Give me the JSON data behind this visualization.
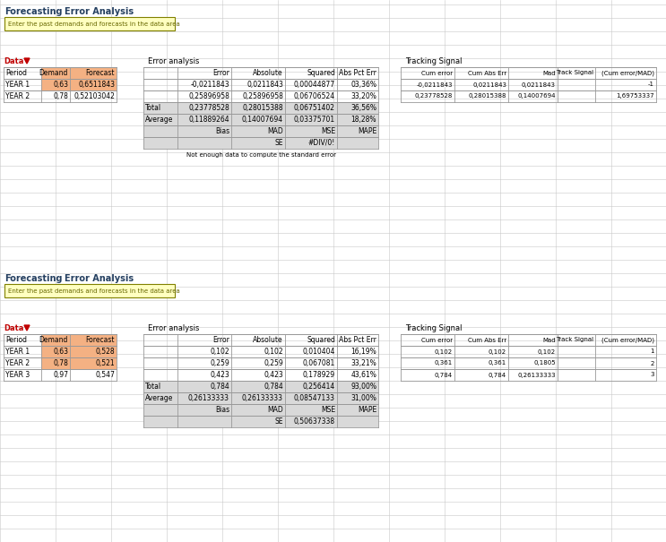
{
  "title_fore": "Forecasting",
  "title_err": "Error Analysis",
  "subtitle": "Enter the past demands and forecasts in the data area",
  "data_header": [
    "Period",
    "Demand",
    "Forecast"
  ],
  "err_header": [
    "",
    "Error",
    "Absolute",
    "Squared",
    "Abs Pct Err"
  ],
  "ts_header": [
    "Cum error",
    "Cum Abs Err",
    "Mad",
    "Track Signal",
    "(Cum error/MAD)"
  ],
  "t1_data_rows": [
    [
      "YEAR 1",
      "0,63",
      "0,6511843"
    ],
    [
      "YEAR 2",
      "0,78",
      "0,52103042"
    ]
  ],
  "t1_err_rows": [
    [
      "",
      "-0,0211843",
      "0,0211843",
      "0,00044877",
      "03,36%"
    ],
    [
      "",
      "0,25896958",
      "0,25896958",
      "0,06706524",
      "33,20%"
    ],
    [
      "Total",
      "0,23778528",
      "0,28015388",
      "0,06751402",
      "36,56%"
    ],
    [
      "Average",
      "0,11889264",
      "0,14007694",
      "0,03375701",
      "18,28%"
    ],
    [
      "",
      "Bias",
      "MAD",
      "MSE",
      "MAPE"
    ],
    [
      "",
      "",
      "SE",
      "#DIV/0!",
      ""
    ]
  ],
  "t1_ts_rows": [
    [
      "-0,0211843",
      "0,0211843",
      "0,0211843",
      "",
      "-1"
    ],
    [
      "0,23778528",
      "0,28015388",
      "0,14007694",
      "",
      "1,69753337"
    ]
  ],
  "t1_note": "Not enough data to compute the standard error",
  "t2_data_rows": [
    [
      "YEAR 1",
      "0,63",
      "0,528"
    ],
    [
      "YEAR 2",
      "0,78",
      "0,521"
    ],
    [
      "YEAR 3",
      "0,97",
      "0,547"
    ]
  ],
  "t2_err_rows": [
    [
      "",
      "0,102",
      "0,102",
      "0,010404",
      "16,19%"
    ],
    [
      "",
      "0,259",
      "0,259",
      "0,067081",
      "33,21%"
    ],
    [
      "",
      "0,423",
      "0,423",
      "0,178929",
      "43,61%"
    ],
    [
      "Total",
      "0,784",
      "0,784",
      "0,256414",
      "93,00%"
    ],
    [
      "Average",
      "0,26133333",
      "0,26133333",
      "0,08547133",
      "31,00%"
    ],
    [
      "",
      "Bias",
      "MAD",
      "MSE",
      "MAPE"
    ],
    [
      "",
      "",
      "SE",
      "0,50637338",
      ""
    ]
  ],
  "t2_ts_rows": [
    [
      "0,102",
      "0,102",
      "0,102",
      "",
      "1"
    ],
    [
      "0,361",
      "0,361",
      "0,1805",
      "",
      "2"
    ],
    [
      "0,784",
      "0,784",
      "0,26133333",
      "",
      "3"
    ]
  ],
  "col_orange": "#F4B183",
  "col_gray": "#D9D9D9",
  "col_white": "#FFFFFF",
  "col_title": "#243F60",
  "col_red": "#C00000",
  "col_subtitle_bg": "#FFFFC0",
  "col_subtitle_border": "#808000",
  "col_grid": "#AAAAAA",
  "col_bg": "#FFFFFF",
  "grid_col_color": "#C8C8C8"
}
